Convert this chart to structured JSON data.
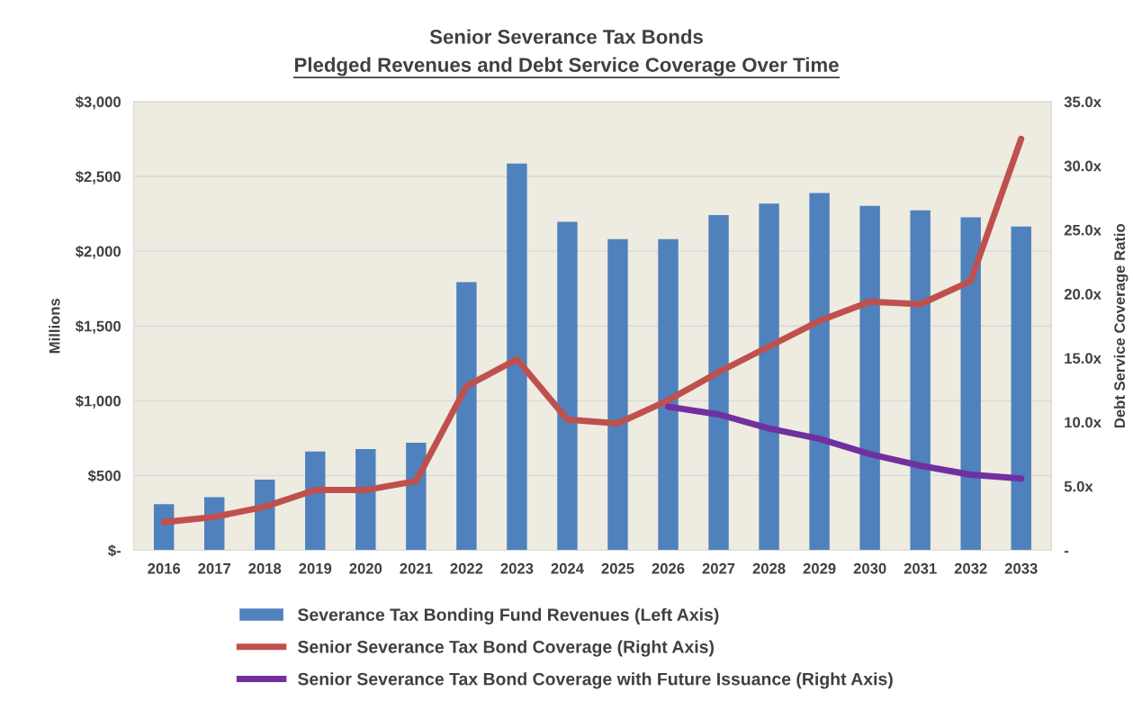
{
  "chart_data": {
    "type": "bar",
    "title": "Senior Severance Tax Bonds",
    "subtitle": "Pledged Revenues and Debt Service Coverage Over Time",
    "ylabel": "Millions",
    "y2label": "Debt Service Coverage Ratio",
    "categories": [
      "2016",
      "2017",
      "2018",
      "2019",
      "2020",
      "2021",
      "2022",
      "2023",
      "2024",
      "2025",
      "2026",
      "2027",
      "2028",
      "2029",
      "2030",
      "2031",
      "2032",
      "2033"
    ],
    "series": [
      {
        "name": "Severance Tax Bonding Fund Revenues (Left Axis)",
        "color": "#4f81bd",
        "values": [
          308,
          355,
          473,
          660,
          677,
          719,
          1793,
          2586,
          2197,
          2081,
          2081,
          2241,
          2318,
          2389,
          2303,
          2273,
          2227,
          2165
        ]
      },
      {
        "name": "Senior Severance Tax Bond Coverage (Right Axis)",
        "type": "line",
        "axis": "y2",
        "color": "#c0504d",
        "values": [
          2.2,
          2.6,
          3.4,
          4.7,
          4.7,
          5.4,
          12.8,
          14.9,
          10.2,
          9.9,
          11.7,
          13.9,
          15.9,
          17.9,
          19.4,
          19.2,
          21.0,
          32.1
        ]
      },
      {
        "name": "Senior Severance Tax Bond Coverage with Future Issuance (Right Axis)",
        "type": "line",
        "axis": "y2",
        "color": "#7030a0",
        "values": [
          null,
          null,
          null,
          null,
          null,
          null,
          null,
          null,
          null,
          null,
          11.2,
          10.6,
          9.5,
          8.7,
          7.5,
          6.6,
          5.9,
          5.6
        ]
      }
    ],
    "ylim": [
      0,
      3000
    ],
    "yticks": [
      {
        "value": 0,
        "label": "$-"
      },
      {
        "value": 500,
        "label": "$500"
      },
      {
        "value": 1000,
        "label": "$1,000"
      },
      {
        "value": 1500,
        "label": "$1,500"
      },
      {
        "value": 2000,
        "label": "$2,000"
      },
      {
        "value": 2500,
        "label": "$2,500"
      },
      {
        "value": 3000,
        "label": "$3,000"
      }
    ],
    "y2lim": [
      0,
      35
    ],
    "y2ticks": [
      {
        "value": 0,
        "label": "-"
      },
      {
        "value": 5,
        "label": "5.0x"
      },
      {
        "value": 10,
        "label": "10.0x"
      },
      {
        "value": 15,
        "label": "15.0x"
      },
      {
        "value": 20,
        "label": "20.0x"
      },
      {
        "value": 25,
        "label": "25.0x"
      },
      {
        "value": 30,
        "label": "30.0x"
      },
      {
        "value": 35,
        "label": "35.0x"
      }
    ],
    "grid": "y",
    "legend": "bottom",
    "marker": "none",
    "line_style": "solid"
  }
}
